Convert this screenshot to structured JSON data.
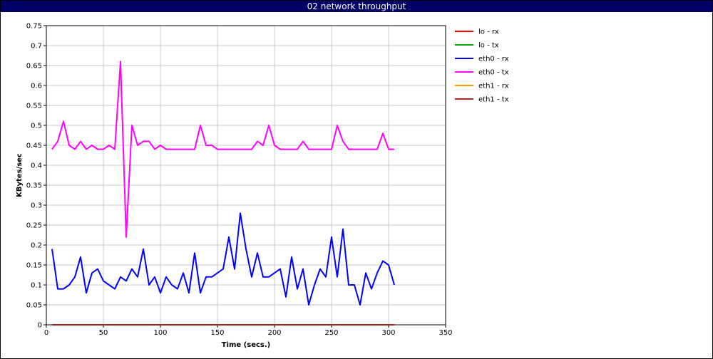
{
  "chart_data": {
    "type": "line",
    "title": "02 network throughput",
    "xlabel": "Time (secs.)",
    "ylabel": "KBytes/sec",
    "xlim": [
      0,
      350
    ],
    "ylim": [
      0,
      0.75
    ],
    "x_ticks": [
      "0",
      "50",
      "100",
      "150",
      "200",
      "250",
      "300",
      "350"
    ],
    "y_ticks": [
      "0",
      "0.05",
      "0.1",
      "0.15",
      "0.2",
      "0.25",
      "0.3",
      "0.35",
      "0.4",
      "0.45",
      "0.5",
      "0.55",
      "0.6",
      "0.65",
      "0.7",
      "0.75"
    ],
    "grid": true,
    "legend_position": "right",
    "x": [
      5,
      10,
      15,
      20,
      25,
      30,
      35,
      40,
      45,
      50,
      55,
      60,
      65,
      70,
      75,
      80,
      85,
      90,
      95,
      100,
      105,
      110,
      115,
      120,
      125,
      130,
      135,
      140,
      145,
      150,
      155,
      160,
      165,
      170,
      175,
      180,
      185,
      190,
      195,
      200,
      205,
      210,
      215,
      220,
      225,
      230,
      235,
      240,
      245,
      250,
      255,
      260,
      265,
      270,
      275,
      280,
      285,
      290,
      295,
      300,
      305
    ],
    "series": [
      {
        "name": "lo - rx",
        "color": "#ff0000",
        "values": [
          0,
          0,
          0,
          0,
          0,
          0,
          0,
          0,
          0,
          0,
          0,
          0,
          0,
          0,
          0,
          0,
          0,
          0,
          0,
          0,
          0,
          0,
          0,
          0,
          0,
          0,
          0,
          0,
          0,
          0,
          0,
          0,
          0,
          0,
          0,
          0,
          0,
          0,
          0,
          0,
          0,
          0,
          0,
          0,
          0,
          0,
          0,
          0,
          0,
          0,
          0,
          0,
          0,
          0,
          0,
          0,
          0,
          0,
          0,
          0,
          0
        ]
      },
      {
        "name": "lo - tx",
        "color": "#00aa00",
        "values": [
          0,
          0,
          0,
          0,
          0,
          0,
          0,
          0,
          0,
          0,
          0,
          0,
          0,
          0,
          0,
          0,
          0,
          0,
          0,
          0,
          0,
          0,
          0,
          0,
          0,
          0,
          0,
          0,
          0,
          0,
          0,
          0,
          0,
          0,
          0,
          0,
          0,
          0,
          0,
          0,
          0,
          0,
          0,
          0,
          0,
          0,
          0,
          0,
          0,
          0,
          0,
          0,
          0,
          0,
          0,
          0,
          0,
          0,
          0,
          0,
          0
        ]
      },
      {
        "name": "eth0 - rx",
        "color": "#0000ff",
        "values": [
          0.19,
          0.09,
          0.09,
          0.1,
          0.12,
          0.17,
          0.08,
          0.13,
          0.14,
          0.11,
          0.1,
          0.09,
          0.12,
          0.11,
          0.14,
          0.12,
          0.19,
          0.1,
          0.12,
          0.08,
          0.12,
          0.1,
          0.09,
          0.13,
          0.08,
          0.18,
          0.08,
          0.12,
          0.12,
          0.13,
          0.14,
          0.22,
          0.14,
          0.28,
          0.19,
          0.12,
          0.18,
          0.12,
          0.12,
          0.13,
          0.14,
          0.07,
          0.17,
          0.09,
          0.14,
          0.05,
          0.1,
          0.14,
          0.12,
          0.22,
          0.12,
          0.24,
          0.1,
          0.1,
          0.05,
          0.13,
          0.09,
          0.13,
          0.16,
          0.15,
          0.1
        ]
      },
      {
        "name": "eth0 - tx",
        "color": "#ff00ff",
        "values": [
          0.44,
          0.46,
          0.51,
          0.45,
          0.44,
          0.46,
          0.44,
          0.45,
          0.44,
          0.44,
          0.45,
          0.44,
          0.66,
          0.22,
          0.5,
          0.45,
          0.46,
          0.46,
          0.44,
          0.45,
          0.44,
          0.44,
          0.44,
          0.44,
          0.44,
          0.44,
          0.5,
          0.45,
          0.45,
          0.44,
          0.44,
          0.44,
          0.44,
          0.44,
          0.44,
          0.44,
          0.46,
          0.45,
          0.5,
          0.45,
          0.44,
          0.44,
          0.44,
          0.44,
          0.46,
          0.44,
          0.44,
          0.44,
          0.44,
          0.44,
          0.5,
          0.46,
          0.44,
          0.44,
          0.44,
          0.44,
          0.44,
          0.44,
          0.48,
          0.44,
          0.44
        ]
      },
      {
        "name": "eth1 - rx",
        "color": "#ff9900",
        "values": [
          0,
          0,
          0,
          0,
          0,
          0,
          0,
          0,
          0,
          0,
          0,
          0,
          0,
          0,
          0,
          0,
          0,
          0,
          0,
          0,
          0,
          0,
          0,
          0,
          0,
          0,
          0,
          0,
          0,
          0,
          0,
          0,
          0,
          0,
          0,
          0,
          0,
          0,
          0,
          0,
          0,
          0,
          0,
          0,
          0,
          0,
          0,
          0,
          0,
          0,
          0,
          0,
          0,
          0,
          0,
          0,
          0,
          0,
          0,
          0,
          0
        ]
      },
      {
        "name": "eth1 - tx",
        "color": "#aa2222",
        "values": [
          0,
          0,
          0,
          0,
          0,
          0,
          0,
          0,
          0,
          0,
          0,
          0,
          0,
          0,
          0,
          0,
          0,
          0,
          0,
          0,
          0,
          0,
          0,
          0,
          0,
          0,
          0,
          0,
          0,
          0,
          0,
          0,
          0,
          0,
          0,
          0,
          0,
          0,
          0,
          0,
          0,
          0,
          0,
          0,
          0,
          0,
          0,
          0,
          0,
          0,
          0,
          0,
          0,
          0,
          0,
          0,
          0,
          0,
          0,
          0,
          0
        ]
      }
    ]
  }
}
